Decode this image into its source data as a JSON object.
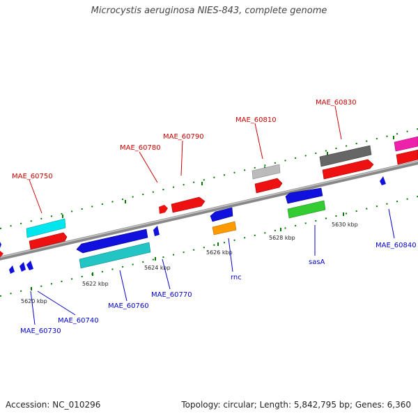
{
  "title": "Microcystis aeruginosa NIES-843, complete genome",
  "footer": {
    "accession": "Accession: NC_010296",
    "topology": "Topology: circular; Length: 5,842,795 bp; Genes: 6,360"
  },
  "tick_labels": [
    "5620 kbp",
    "5622 kbp",
    "5624 kbp",
    "5626 kbp",
    "5628 kbp",
    "5630 kbp"
  ],
  "gene_labels": {
    "forward": [
      "MAE_60750",
      "MAE_60780",
      "MAE_60790",
      "MAE_60810",
      "MAE_60830"
    ],
    "reverse": [
      "MAE_60730",
      "MAE_60740",
      "MAE_60760",
      "MAE_60770",
      "rnc",
      "sasA",
      "MAE_60840"
    ]
  },
  "colors": {
    "forward_label": "#cc0000",
    "reverse_label": "#0000cc",
    "backbone": "#888888",
    "tick": "#007700",
    "gene_red": "#ee1111",
    "gene_blue": "#1111dd",
    "gene_cyan": "#00e5ee",
    "gene_teal": "#22c4c4",
    "gene_gray": "#bbbbbb",
    "gene_darkgray": "#666666",
    "gene_green": "#33cc33",
    "gene_orange": "#ff9900",
    "gene_magenta": "#ee22aa"
  }
}
